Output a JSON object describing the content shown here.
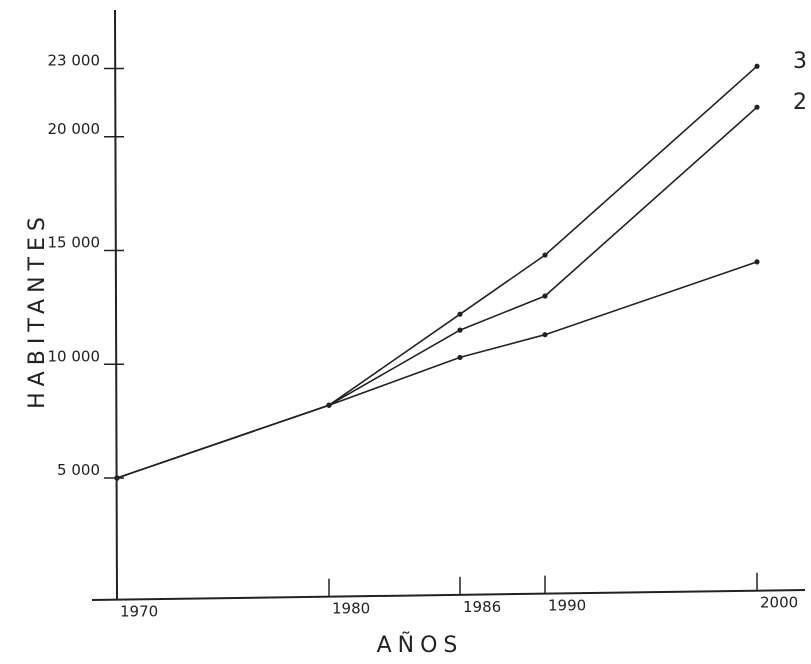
{
  "chart_data": {
    "type": "line",
    "xlabel": "AÑOS",
    "ylabel": "HABITANTES",
    "x": [
      1970,
      1980,
      1986,
      1990,
      2000
    ],
    "x_tick_labels": [
      "1970",
      "1980",
      "1986",
      "1990",
      "2000"
    ],
    "y_ticks": [
      5000,
      10000,
      15000,
      20000,
      23000
    ],
    "y_tick_labels": [
      "5 000",
      "10 000",
      "15 000",
      "20 000",
      "23 000"
    ],
    "xlim": [
      1970,
      2000
    ],
    "ylim": [
      0,
      23000
    ],
    "grid": false,
    "series": [
      {
        "name": "",
        "values": [
          5000,
          8200,
          10300,
          11300,
          14500
        ]
      },
      {
        "name": "2",
        "values": [
          5000,
          8200,
          11500,
          13000,
          21300
        ]
      },
      {
        "name": "3",
        "values": [
          5000,
          8200,
          12200,
          14800,
          23100
        ]
      }
    ]
  }
}
